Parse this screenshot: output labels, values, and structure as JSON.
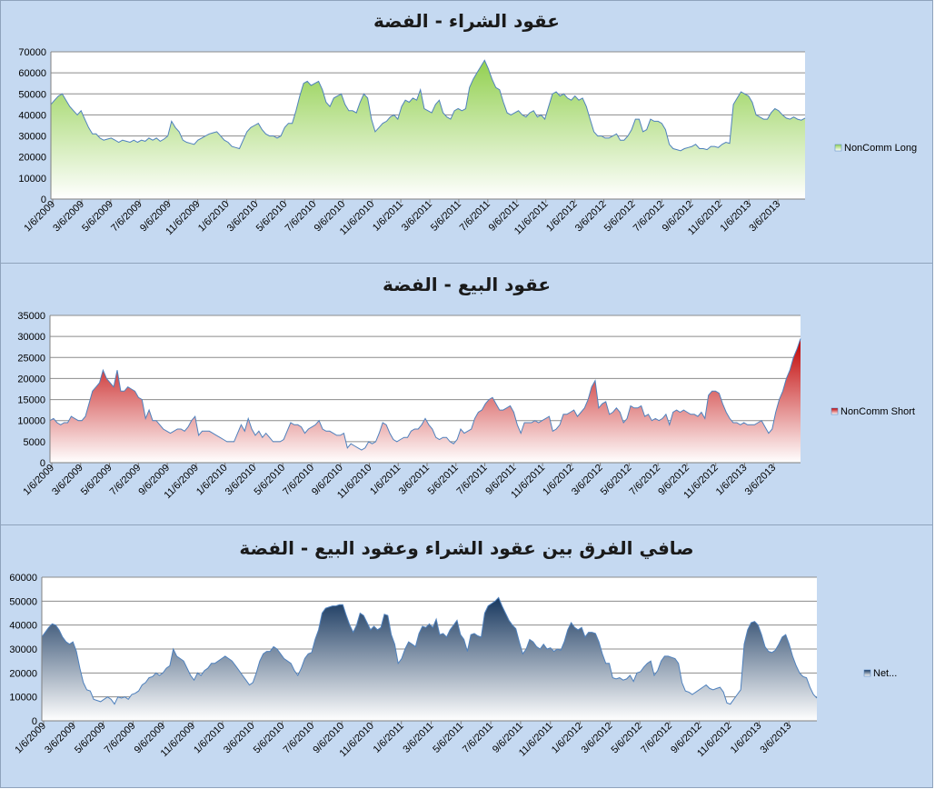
{
  "chart_data": [
    {
      "type": "area",
      "title": "عقود الشراء - الفضة",
      "legend": "NonComm Long",
      "legend_position": "right",
      "colors": {
        "top": "#92d050",
        "bottom": "#ffffff",
        "line": "#4f81bd"
      },
      "ylim": [
        0,
        70000
      ],
      "yticks": [
        "0",
        "10000",
        "20000",
        "30000",
        "40000",
        "50000",
        "60000",
        "70000"
      ],
      "xticks": [
        "1/6/2009",
        "3/6/2009",
        "5/6/2009",
        "7/6/2009",
        "9/6/2009",
        "11/6/2009",
        "1/6/2010",
        "3/6/2010",
        "5/6/2010",
        "7/6/2010",
        "9/6/2010",
        "11/6/2010",
        "1/6/2011",
        "3/6/2011",
        "5/6/2011",
        "7/6/2011",
        "9/6/2011",
        "11/6/2011",
        "1/6/2012",
        "3/6/2012",
        "5/6/2012",
        "7/6/2012",
        "9/6/2012",
        "11/6/2012",
        "1/6/2013",
        "3/6/2013"
      ],
      "grid": true,
      "values": [
        45000,
        47000,
        49000,
        50000,
        47000,
        44000,
        42000,
        40000,
        42000,
        38000,
        34000,
        31000,
        31000,
        29000,
        28000,
        28500,
        29000,
        28000,
        27000,
        28000,
        27500,
        27000,
        28000,
        27000,
        28000,
        27500,
        29000,
        28000,
        29000,
        27500,
        28500,
        30000,
        37000,
        34000,
        32000,
        28000,
        27000,
        26500,
        26000,
        28000,
        29000,
        30000,
        31000,
        31500,
        32000,
        30000,
        28000,
        27000,
        25000,
        24500,
        24000,
        28000,
        32000,
        34000,
        35000,
        36000,
        33000,
        31000,
        30000,
        30000,
        29000,
        30000,
        34000,
        36000,
        36000,
        42000,
        49000,
        55000,
        56000,
        54000,
        55000,
        56000,
        52000,
        46000,
        44000,
        48000,
        49000,
        50000,
        45000,
        42000,
        42000,
        41000,
        46000,
        50000,
        48000,
        38000,
        32000,
        34000,
        36000,
        37000,
        39000,
        40000,
        38000,
        44000,
        47000,
        46000,
        48000,
        47000,
        52000,
        43000,
        42000,
        41000,
        45000,
        47000,
        41000,
        39000,
        38000,
        42000,
        43000,
        42000,
        43000,
        53000,
        57000,
        60000,
        63000,
        66000,
        62000,
        57000,
        53000,
        52000,
        46000,
        41000,
        40000,
        41000,
        42000,
        40000,
        39000,
        41000,
        42000,
        39000,
        40000,
        38000,
        44000,
        50000,
        51000,
        49000,
        50000,
        48000,
        47000,
        49000,
        47000,
        48000,
        44000,
        38000,
        32000,
        30000,
        30000,
        29000,
        29000,
        30000,
        31000,
        28000,
        28000,
        30000,
        33000,
        38000,
        38000,
        32000,
        33000,
        38000,
        37000,
        37000,
        36000,
        33000,
        26000,
        24000,
        23500,
        23000,
        24000,
        24500,
        25000,
        26000,
        24000,
        24000,
        23500,
        25000,
        25000,
        24500,
        26000,
        27000,
        26500,
        45000,
        48000,
        51000,
        50000,
        49000,
        46000,
        40000,
        39000,
        38000,
        38000,
        41000,
        43000,
        42000,
        40000,
        38500,
        38000,
        39000,
        38000,
        37500,
        38500
      ]
    },
    {
      "type": "area",
      "title": "عقود البيع - الفضة",
      "legend": "NonComm Short",
      "legend_position": "right",
      "colors": {
        "top": "#c00000",
        "bottom": "#ffffff",
        "line": "#4f81bd"
      },
      "ylim": [
        0,
        35000
      ],
      "yticks": [
        "0",
        "5000",
        "10000",
        "15000",
        "20000",
        "25000",
        "30000",
        "35000"
      ],
      "xticks": [
        "1/6/2009",
        "3/6/2009",
        "5/6/2009",
        "7/6/2009",
        "9/6/2009",
        "11/6/2009",
        "1/6/2010",
        "3/6/2010",
        "5/6/2010",
        "7/6/2010",
        "9/6/2010",
        "11/6/2010",
        "1/6/2011",
        "3/6/2011",
        "5/6/2011",
        "7/6/2011",
        "9/6/2011",
        "11/6/2011",
        "1/6/2012",
        "3/6/2012",
        "5/6/2012",
        "7/6/2012",
        "9/6/2012",
        "11/6/2012",
        "1/6/2013",
        "3/6/2013"
      ],
      "grid": true,
      "values": [
        10000,
        10500,
        9500,
        9000,
        9500,
        9500,
        11000,
        10500,
        10000,
        10000,
        11000,
        14000,
        17000,
        18000,
        19000,
        22000,
        20000,
        19000,
        18000,
        22000,
        17000,
        17000,
        18000,
        17500,
        17000,
        15500,
        15000,
        10500,
        12500,
        10000,
        10000,
        9000,
        8000,
        7500,
        7000,
        7500,
        8000,
        8000,
        7500,
        8500,
        10000,
        11000,
        6500,
        7500,
        7500,
        7500,
        7000,
        6500,
        6000,
        5500,
        5000,
        5000,
        5000,
        7000,
        9000,
        7500,
        10500,
        8000,
        6500,
        7500,
        6000,
        7000,
        6000,
        5000,
        5000,
        5000,
        5500,
        7500,
        9500,
        9000,
        9000,
        8500,
        7000,
        8000,
        8500,
        9000,
        10000,
        8000,
        7500,
        7500,
        7000,
        6500,
        6500,
        7000,
        3500,
        4500,
        4000,
        3500,
        3000,
        3500,
        5000,
        4500,
        5000,
        7000,
        9500,
        9000,
        7000,
        5500,
        5000,
        5500,
        6000,
        6000,
        7500,
        8000,
        8000,
        9000,
        10500,
        9000,
        8000,
        6000,
        5500,
        6000,
        6000,
        5000,
        4500,
        5500,
        8000,
        7000,
        7500,
        8000,
        10500,
        12000,
        12500,
        14000,
        15000,
        15500,
        14000,
        12500,
        12500,
        13000,
        13500,
        12000,
        9000,
        7000,
        9500,
        9500,
        9500,
        10000,
        9500,
        10000,
        10500,
        11000,
        7500,
        8000,
        9000,
        11500,
        11500,
        12000,
        12500,
        11000,
        12000,
        13000,
        15000,
        18000,
        19500,
        13000,
        14000,
        14500,
        11500,
        12000,
        13000,
        12000,
        9500,
        10500,
        13500,
        13000,
        13000,
        13500,
        11000,
        11500,
        10000,
        10500,
        10000,
        10500,
        11500,
        9000,
        12000,
        12500,
        12000,
        12500,
        12000,
        11500,
        11500,
        11000,
        12000,
        10500,
        16000,
        17000,
        17000,
        16500,
        14000,
        12000,
        10500,
        9500,
        9500,
        9000,
        9500,
        9000,
        9000,
        9000,
        9500,
        10000,
        8500,
        7000,
        8000,
        12000,
        15000,
        17000,
        20000,
        22000,
        25000,
        27000,
        29500
      ]
    },
    {
      "type": "area",
      "title": "صافي الفرق بين عقود الشراء وعقود البيع - الفضة",
      "legend": "Net...",
      "legend_position": "right",
      "colors": {
        "top": "#17375e",
        "bottom": "#ffffff",
        "line": "#4f81bd"
      },
      "ylim": [
        0,
        60000
      ],
      "yticks": [
        "0",
        "10000",
        "20000",
        "30000",
        "40000",
        "50000",
        "60000"
      ],
      "xticks": [
        "1/6/2009",
        "3/6/2009",
        "5/6/2009",
        "7/6/2009",
        "9/6/2009",
        "11/6/2009",
        "1/6/2010",
        "3/6/2010",
        "5/6/2010",
        "7/6/2010",
        "9/6/2010",
        "11/6/2010",
        "1/6/2011",
        "3/6/2011",
        "5/6/2011",
        "7/6/2011",
        "9/6/2011",
        "11/6/2011",
        "1/6/2012",
        "3/6/2012",
        "5/6/2012",
        "7/6/2012",
        "9/6/2012",
        "11/6/2012",
        "1/6/2013",
        "3/6/2013"
      ],
      "grid": true,
      "values": [
        35000,
        37000,
        39000,
        40500,
        40000,
        38000,
        35000,
        33000,
        32000,
        33000,
        29000,
        22000,
        16000,
        13000,
        12500,
        9000,
        8500,
        8000,
        9000,
        10000,
        9000,
        7000,
        10000,
        9500,
        10000,
        9000,
        11000,
        11500,
        12500,
        15000,
        16000,
        18000,
        18500,
        20000,
        19000,
        20000,
        22000,
        23000,
        30000,
        27000,
        26000,
        25000,
        22000,
        19000,
        17000,
        20000,
        19000,
        21000,
        22000,
        24000,
        24000,
        25000,
        26000,
        27000,
        26000,
        25000,
        23000,
        21000,
        19000,
        17000,
        15000,
        16000,
        20000,
        25000,
        28000,
        29000,
        29000,
        31000,
        30000,
        28000,
        26000,
        25000,
        24000,
        21000,
        19000,
        22000,
        26000,
        28000,
        28500,
        34000,
        38000,
        45000,
        47000,
        47500,
        48000,
        48000,
        48500,
        48500,
        44000,
        40000,
        37000,
        40000,
        45000,
        44000,
        41000,
        38000,
        39500,
        38000,
        39000,
        44500,
        44000,
        36000,
        32000,
        24000,
        26000,
        30000,
        33000,
        32000,
        31000,
        36500,
        39500,
        39000,
        40500,
        39000,
        42500,
        36000,
        36500,
        35000,
        38000,
        40000,
        42000,
        36000,
        34000,
        29000,
        36000,
        36500,
        35500,
        35000,
        45000,
        48000,
        49000,
        50000,
        51500,
        48000,
        45000,
        42000,
        40000,
        38500,
        33000,
        28000,
        30000,
        34000,
        33000,
        31000,
        30000,
        32000,
        30000,
        30500,
        29000,
        30000,
        29500,
        33000,
        38000,
        41000,
        39000,
        38000,
        39000,
        35000,
        37000,
        37000,
        36500,
        33000,
        28000,
        24000,
        24000,
        18000,
        17500,
        18000,
        17000,
        17500,
        19000,
        16500,
        20000,
        20500,
        22500,
        24000,
        25000,
        19000,
        21000,
        25000,
        27000,
        27000,
        26500,
        26000,
        24000,
        16000,
        12500,
        12000,
        11000,
        12000,
        13000,
        14000,
        15000,
        13500,
        13000,
        13500,
        14000,
        12000,
        7500,
        7000,
        9000,
        11000,
        13000,
        32000,
        38000,
        41000,
        41500,
        40000,
        36000,
        31000,
        29000,
        28500,
        29500,
        32000,
        35000,
        36000,
        32000,
        27000,
        23000,
        20000,
        18500,
        18000,
        14000,
        11000,
        9500
      ]
    }
  ]
}
